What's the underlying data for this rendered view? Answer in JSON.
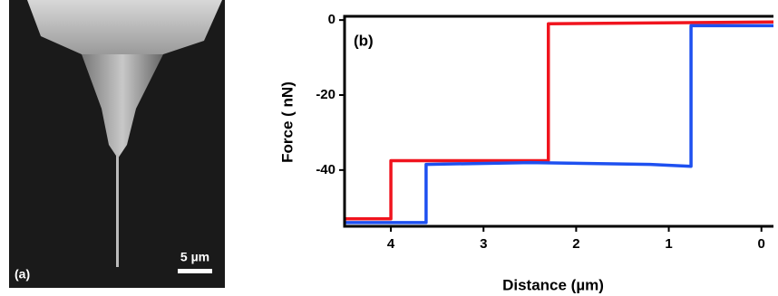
{
  "panel_a": {
    "label": "(a)",
    "scale_bar": "5 µm"
  },
  "chart_data": {
    "type": "line",
    "panel_label": "(b)",
    "x_label": "Distance (µm)",
    "y_label": "Force ( nN)",
    "xlim": [
      4.5,
      -0.13
    ],
    "ylim": [
      -55,
      1
    ],
    "xticks": [
      4,
      3,
      2,
      1,
      0
    ],
    "yticks": [
      0,
      -20,
      -40
    ],
    "series": [
      {
        "color": "#f0141e",
        "x": [
          4.5,
          4.0,
          4.0,
          2.3,
          2.3,
          -0.13
        ],
        "values": [
          -53,
          -53,
          -37.5,
          -37.5,
          -1,
          -0.5
        ]
      },
      {
        "color": "#1e50f0",
        "x": [
          4.5,
          3.62,
          3.62,
          2.5,
          1.2,
          0.76,
          0.76,
          -0.13
        ],
        "values": [
          -54,
          -54,
          -38.5,
          -38,
          -38.5,
          -39,
          -1.5,
          -1.5
        ]
      }
    ]
  }
}
